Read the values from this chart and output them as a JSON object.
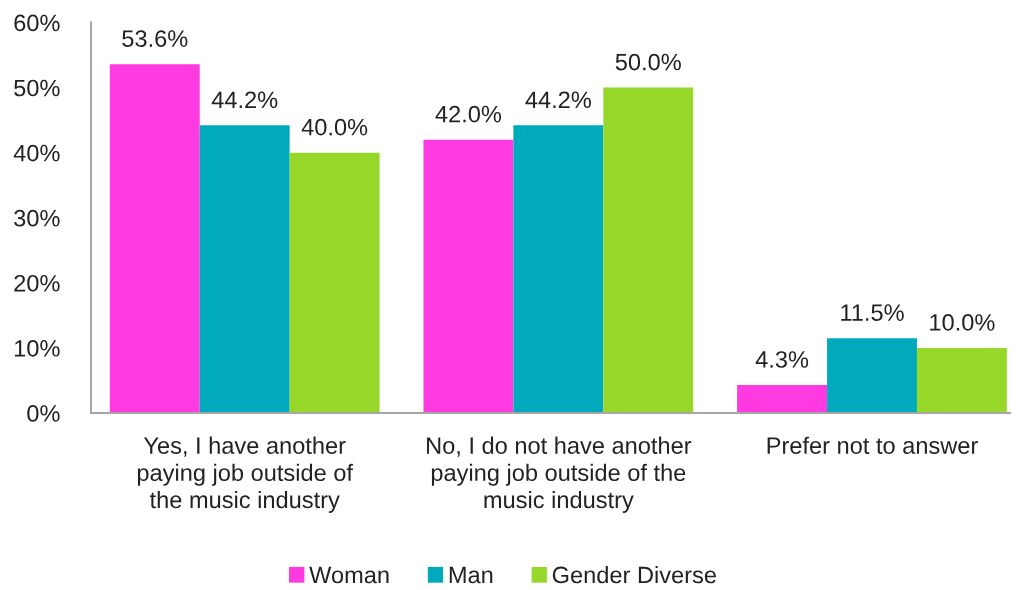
{
  "chart_data": {
    "type": "bar",
    "categories": [
      "Yes, I have another\npaying job outside of\nthe music industry",
      "No, I do not have another\npaying job outside of the\nmusic industry",
      "Prefer not to answer"
    ],
    "series": [
      {
        "name": "Woman",
        "color": "#ff3ae0",
        "values": [
          53.6,
          42.0,
          4.3
        ],
        "value_labels": [
          "53.6%",
          "42.0%",
          "4.3%"
        ]
      },
      {
        "name": "Man",
        "color": "#00aabd",
        "values": [
          44.2,
          44.2,
          11.5
        ],
        "value_labels": [
          "44.2%",
          "44.2%",
          "11.5%"
        ]
      },
      {
        "name": "Gender Diverse",
        "color": "#97d72a",
        "values": [
          40.0,
          50.0,
          10.0
        ],
        "value_labels": [
          "40.0%",
          "50.0%",
          "10.0%"
        ]
      }
    ],
    "ylim": [
      0,
      60
    ],
    "yticks": [
      {
        "value": 0,
        "label": "0%"
      },
      {
        "value": 10,
        "label": "10%"
      },
      {
        "value": 20,
        "label": "20%"
      },
      {
        "value": 30,
        "label": "30%"
      },
      {
        "value": 40,
        "label": "40%"
      },
      {
        "value": 50,
        "label": "50%"
      },
      {
        "value": 60,
        "label": "60%"
      }
    ],
    "legend": "bottom"
  }
}
